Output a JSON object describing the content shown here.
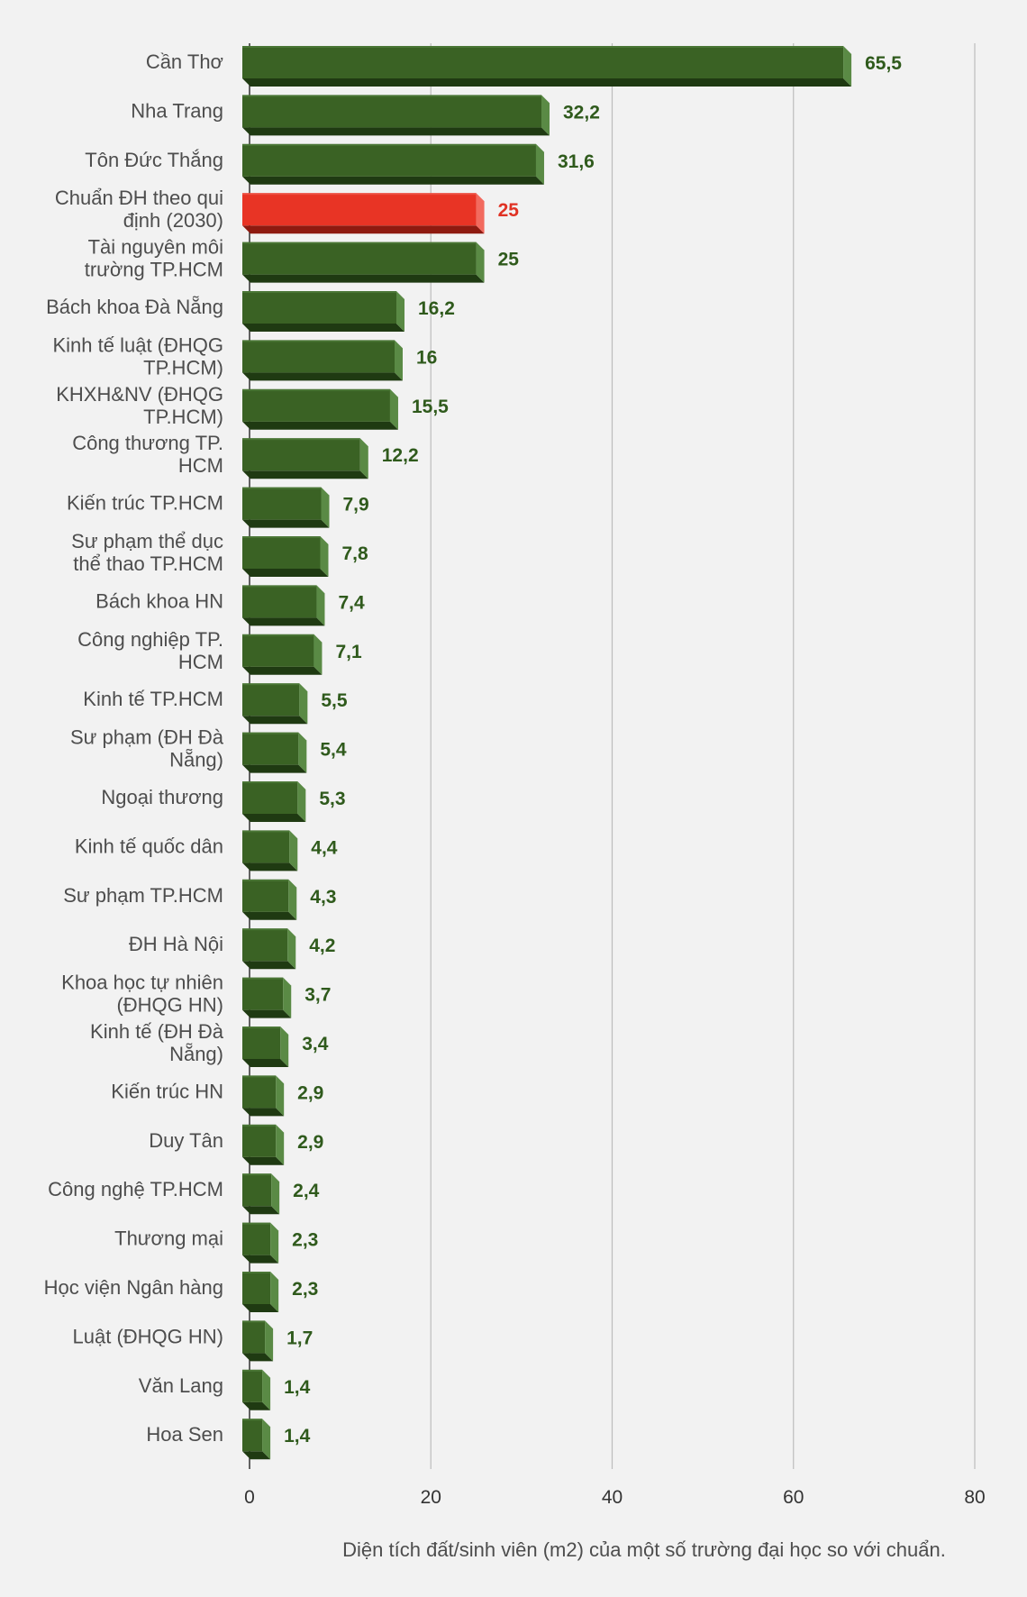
{
  "chart_data": {
    "type": "bar",
    "orientation": "horizontal",
    "caption": "Diện tích đất/sinh viên (m2) của một số trường đại học so với chuẩn.",
    "xlim": [
      0,
      80
    ],
    "x_ticks": [
      "0",
      "20",
      "40",
      "60",
      "80"
    ],
    "grid": true,
    "categories": [
      [
        "Cần Thơ"
      ],
      [
        "Nha Trang"
      ],
      [
        "Tôn Đức Thắng"
      ],
      [
        "Chuẩn ĐH theo qui",
        "định (2030)"
      ],
      [
        "Tài nguyên môi",
        "trường TP.HCM"
      ],
      [
        "Bách khoa Đà Nẵng"
      ],
      [
        "Kinh tế luật (ĐHQG",
        "TP.HCM)"
      ],
      [
        "KHXH&NV (ĐHQG",
        "TP.HCM)"
      ],
      [
        "Công thương TP.",
        "HCM"
      ],
      [
        "Kiến trúc TP.HCM"
      ],
      [
        "Sư phạm thể dục",
        "thể thao TP.HCM"
      ],
      [
        "Bách khoa HN"
      ],
      [
        "Công nghiệp TP.",
        "HCM"
      ],
      [
        "Kinh tế TP.HCM"
      ],
      [
        "Sư phạm (ĐH Đà",
        "Nẵng)"
      ],
      [
        "Ngoại thương"
      ],
      [
        "Kinh tế quốc dân"
      ],
      [
        "Sư phạm TP.HCM"
      ],
      [
        "ĐH Hà Nội"
      ],
      [
        "Khoa học tự nhiên",
        "(ĐHQG HN)"
      ],
      [
        "Kinh tế (ĐH Đà",
        "Nẵng)"
      ],
      [
        "Kiến trúc HN"
      ],
      [
        "Duy Tân"
      ],
      [
        "Công nghệ TP.HCM"
      ],
      [
        "Thương mại"
      ],
      [
        "Học viện Ngân hàng"
      ],
      [
        "Luật (ĐHQG HN)"
      ],
      [
        "Văn Lang"
      ],
      [
        "Hoa Sen"
      ]
    ],
    "values": [
      65.5,
      32.2,
      31.6,
      25,
      25,
      16.2,
      16,
      15.5,
      12.2,
      7.9,
      7.8,
      7.4,
      7.1,
      5.5,
      5.4,
      5.3,
      4.4,
      4.3,
      4.2,
      3.7,
      3.4,
      2.9,
      2.9,
      2.4,
      2.3,
      2.3,
      1.7,
      1.4,
      1.4
    ],
    "value_labels": [
      "65,5",
      "32,2",
      "31,6",
      "25",
      "25",
      "16,2",
      "16",
      "15,5",
      "12,2",
      "7,9",
      "7,8",
      "7,4",
      "7,1",
      "5,5",
      "5,4",
      "5,3",
      "4,4",
      "4,3",
      "4,2",
      "3,7",
      "3,4",
      "2,9",
      "2,9",
      "2,4",
      "2,3",
      "2,3",
      "1,7",
      "1,4",
      "1,4"
    ],
    "highlight_index": 3,
    "colors": {
      "bar_front": "#3a6224",
      "bar_side": "#5a8a45",
      "bar_bottom": "#1f3a12",
      "bar_label": "#2f5a1c",
      "highlight_front": "#e83425",
      "highlight_side": "#f26a5e",
      "highlight_bottom": "#8e1a10",
      "highlight_label": "#e03224",
      "grid": "#bdbdbd",
      "axis": "#333333"
    }
  }
}
